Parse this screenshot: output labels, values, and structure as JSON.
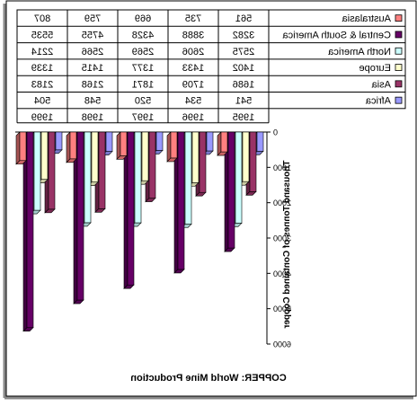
{
  "chart_data": {
    "type": "bar",
    "title": "COPPER: World Mine Production",
    "ylabel": "Thousand Tonnes of Contained Copper",
    "xlabel": "",
    "ylim": [
      0,
      6000
    ],
    "ytick_step": 1000,
    "orientation": "inverted-mirrored",
    "legend": "top-table",
    "grid": false,
    "categories": [
      "1995",
      "1996",
      "1997",
      "1998",
      "1999"
    ],
    "series": [
      {
        "name": "Africa",
        "color": "#9999ff",
        "values": [
          541,
          534,
          520,
          548,
          504
        ]
      },
      {
        "name": "Asia",
        "color": "#993366",
        "values": [
          1686,
          1709,
          1871,
          2168,
          2183
        ]
      },
      {
        "name": "Europe",
        "color": "#ffffcc",
        "values": [
          1402,
          1433,
          1377,
          1415,
          1339
        ]
      },
      {
        "name": "North America",
        "color": "#ccffff",
        "values": [
          2575,
          2606,
          2569,
          2566,
          2214
        ]
      },
      {
        "name": "Central & South America",
        "color": "#660066",
        "values": [
          3282,
          3888,
          4328,
          4755,
          5535
        ]
      },
      {
        "name": "Australasia",
        "color": "#ff8080",
        "values": [
          561,
          735,
          669,
          759,
          807
        ]
      }
    ]
  }
}
